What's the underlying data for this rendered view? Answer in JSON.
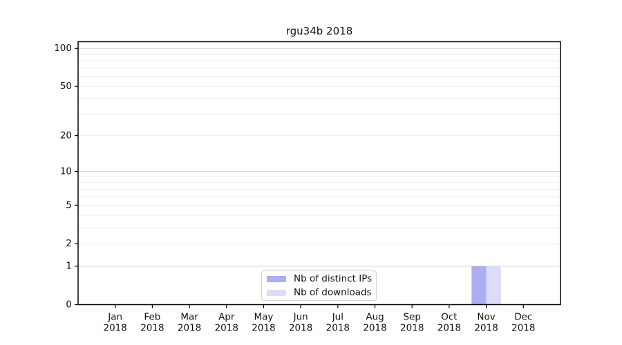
{
  "chart_data": {
    "type": "bar",
    "title": "rgu34b 2018",
    "x_tick_months": [
      "Jan",
      "Feb",
      "Mar",
      "Apr",
      "May",
      "Jun",
      "Jul",
      "Aug",
      "Sep",
      "Oct",
      "Nov",
      "Dec"
    ],
    "x_tick_year": "2018",
    "series": [
      {
        "name": "Nb of distinct IPs",
        "color": "#adadf2",
        "values": [
          0,
          0,
          0,
          0,
          0,
          0,
          0,
          0,
          0,
          0,
          1,
          0
        ]
      },
      {
        "name": "Nb of downloads",
        "color": "#dcdcfa",
        "values": [
          0,
          0,
          0,
          0,
          0,
          0,
          0,
          0,
          0,
          0,
          1,
          0
        ]
      }
    ],
    "y_axis": {
      "scale": "log1p",
      "ticks": [
        0,
        1,
        2,
        5,
        10,
        20,
        50,
        100
      ],
      "major_gridlines": [
        1,
        10,
        100
      ],
      "minor_gridlines": [
        2,
        3,
        4,
        5,
        6,
        7,
        8,
        9,
        20,
        30,
        40,
        50,
        60,
        70,
        80,
        90
      ],
      "ylim": [
        0,
        113
      ]
    },
    "legend_position": "lower center",
    "grid": "horizontal-only"
  },
  "colors": {
    "axis": "#000000",
    "major_grid": "#d4d4d4",
    "minor_grid": "#ececec",
    "text": "#111111",
    "legend_border": "#d2d2d2",
    "background": "#ffffff"
  }
}
